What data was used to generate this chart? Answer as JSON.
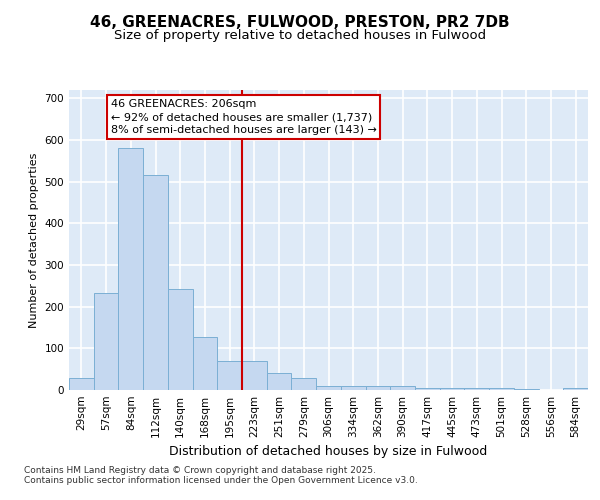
{
  "title": "46, GREENACRES, FULWOOD, PRESTON, PR2 7DB",
  "subtitle": "Size of property relative to detached houses in Fulwood",
  "xlabel": "Distribution of detached houses by size in Fulwood",
  "ylabel": "Number of detached properties",
  "categories": [
    "29sqm",
    "57sqm",
    "84sqm",
    "112sqm",
    "140sqm",
    "168sqm",
    "195sqm",
    "223sqm",
    "251sqm",
    "279sqm",
    "306sqm",
    "334sqm",
    "362sqm",
    "390sqm",
    "417sqm",
    "445sqm",
    "473sqm",
    "501sqm",
    "528sqm",
    "556sqm",
    "584sqm"
  ],
  "values": [
    30,
    232,
    580,
    515,
    242,
    128,
    70,
    70,
    42,
    28,
    10,
    10,
    10,
    10,
    5,
    5,
    5,
    5,
    2,
    0,
    5
  ],
  "bar_color": "#c5d8f0",
  "bar_edge_color": "#7bafd4",
  "background_color": "#deeaf7",
  "grid_color": "#ffffff",
  "vline_color": "#cc0000",
  "vline_xindex": 7,
  "annotation_text": "46 GREENACRES: 206sqm\n← 92% of detached houses are smaller (1,737)\n8% of semi-detached houses are larger (143) →",
  "annotation_box_edgecolor": "#cc0000",
  "footer_text": "Contains HM Land Registry data © Crown copyright and database right 2025.\nContains public sector information licensed under the Open Government Licence v3.0.",
  "ylim": [
    0,
    720
  ],
  "yticks": [
    0,
    100,
    200,
    300,
    400,
    500,
    600,
    700
  ],
  "title_fontsize": 11,
  "subtitle_fontsize": 9.5,
  "xlabel_fontsize": 9,
  "ylabel_fontsize": 8,
  "tick_fontsize": 7.5,
  "ann_fontsize": 8,
  "footer_fontsize": 6.5
}
